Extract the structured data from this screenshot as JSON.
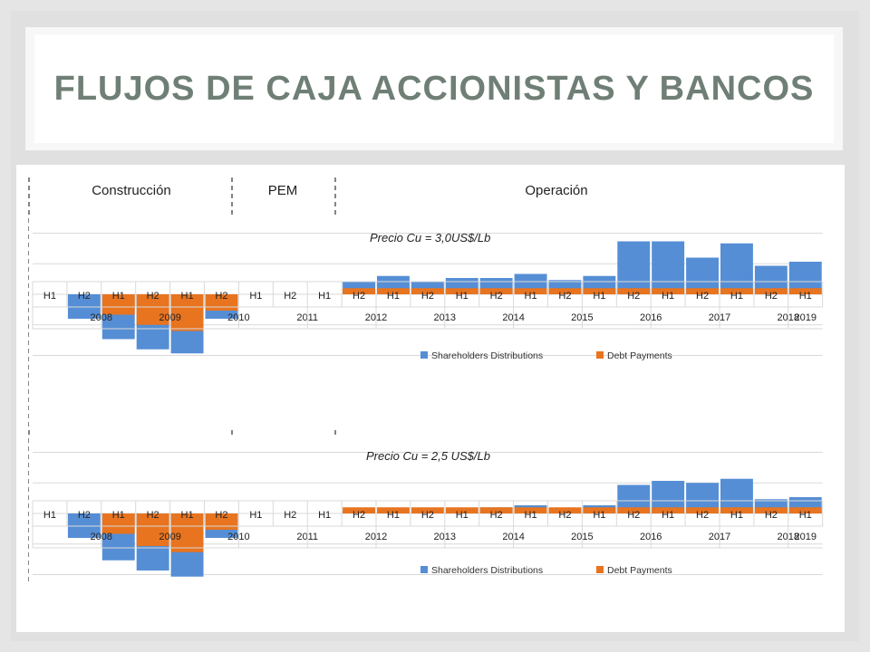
{
  "slide": {
    "title": "FLUJOS DE CAJA ACCIONISTAS Y BANCOS"
  },
  "phases": [
    {
      "label": "Construcción"
    },
    {
      "label": "PEM"
    },
    {
      "label": "Operación"
    }
  ],
  "colors": {
    "shareholders": "#558ed5",
    "debt": "#e8741f",
    "title": "#6f7f76",
    "grid": "#d9d9d9"
  },
  "chart_data": [
    {
      "type": "bar",
      "stacked": true,
      "annotation": "Precio Cu = 3,0US$/Lb",
      "categories": [
        "H1",
        "H2",
        "H1",
        "H2",
        "H1",
        "H2",
        "H1",
        "H2",
        "H1",
        "H2",
        "H1",
        "H2",
        "H1",
        "H2",
        "H1",
        "H2",
        "H1",
        "H2",
        "H1",
        "H2",
        "H1",
        "H2",
        "H1"
      ],
      "years": [
        "2008",
        "2009",
        "2010",
        "2011",
        "2012",
        "2013",
        "2014",
        "2015",
        "2016",
        "2017",
        "2018",
        "2019"
      ],
      "series": [
        {
          "name": "Shareholders Distributions",
          "values": [
            0,
            -1.2,
            -2.2,
            -2.7,
            -2.9,
            -1.2,
            0,
            0,
            0,
            0.6,
            0.9,
            0.6,
            0.8,
            0.8,
            1.0,
            0.7,
            0.9,
            2.6,
            2.6,
            1.8,
            2.5,
            1.4,
            1.6
          ]
        },
        {
          "name": "Debt Payments",
          "values": [
            0,
            0,
            -1.0,
            -1.5,
            -1.8,
            -0.8,
            0,
            0,
            0,
            0.3,
            0.3,
            0.3,
            0.3,
            0.3,
            0.3,
            0.3,
            0.3,
            0.3,
            0.3,
            0.3,
            0.3,
            0.3,
            0.3
          ]
        }
      ],
      "legend_position": "bottom-right",
      "grid": true
    },
    {
      "type": "bar",
      "stacked": true,
      "annotation": "Precio Cu = 2,5 US$/Lb",
      "categories": [
        "H1",
        "H2",
        "H1",
        "H2",
        "H1",
        "H2",
        "H1",
        "H2",
        "H1",
        "H2",
        "H1",
        "H2",
        "H1",
        "H2",
        "H1",
        "H2",
        "H1",
        "H2",
        "H1",
        "H2",
        "H1",
        "H2",
        "H1"
      ],
      "years": [
        "2008",
        "2009",
        "2010",
        "2011",
        "2012",
        "2013",
        "2014",
        "2015",
        "2016",
        "2017",
        "2018",
        "2019"
      ],
      "series": [
        {
          "name": "Shareholders Distributions",
          "values": [
            0,
            -1.2,
            -2.3,
            -2.8,
            -3.1,
            -1.2,
            0,
            0,
            0,
            0.15,
            0,
            0,
            0.05,
            0.3,
            0.4,
            0.15,
            0.4,
            1.4,
            1.6,
            1.5,
            1.7,
            0.7,
            0.8
          ]
        },
        {
          "name": "Debt Payments",
          "values": [
            0,
            0,
            -1.0,
            -1.6,
            -1.9,
            -0.8,
            0,
            0,
            0,
            0.3,
            0.3,
            0.3,
            0.3,
            0.3,
            0.3,
            0.3,
            0.3,
            0.3,
            0.3,
            0.3,
            0.3,
            0.3,
            0.3
          ]
        }
      ],
      "legend_position": "bottom-right",
      "grid": true
    }
  ]
}
